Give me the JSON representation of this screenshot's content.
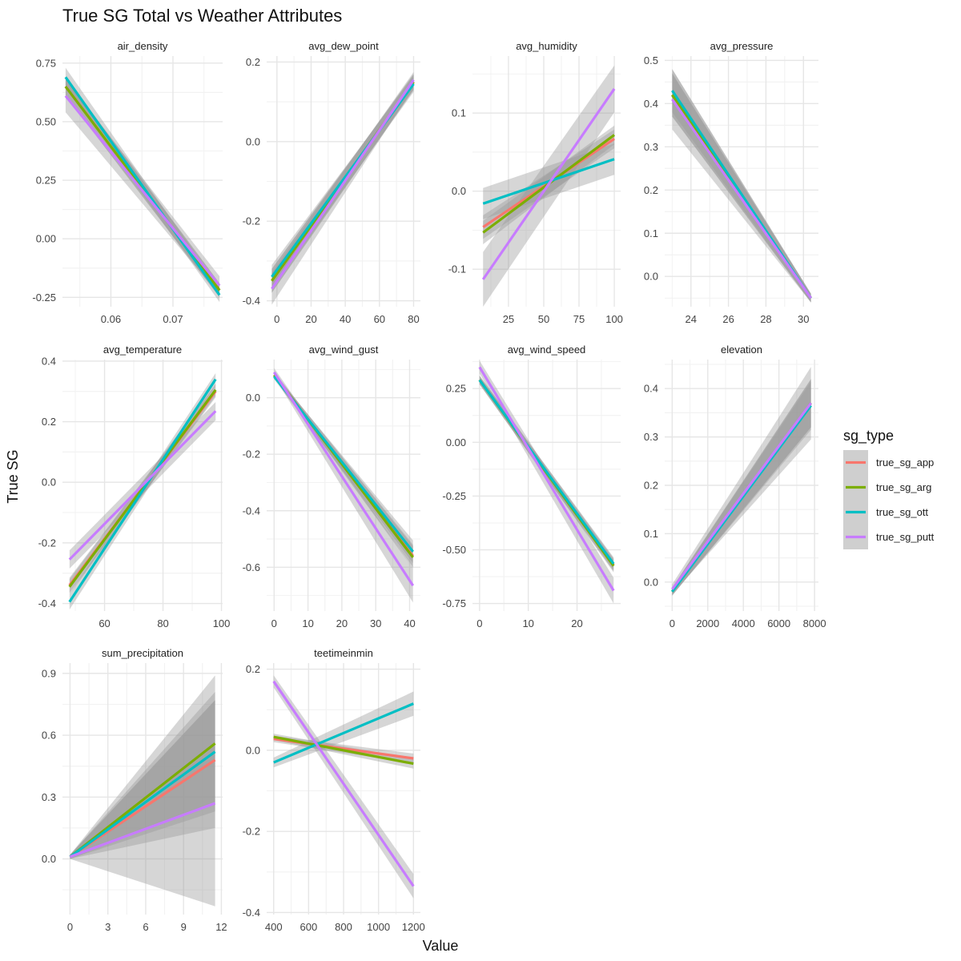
{
  "title": "True SG Total vs Weather Attributes",
  "xlabel": "Value",
  "ylabel": "True SG",
  "legend": {
    "title": "sg_type",
    "position": "right",
    "items": [
      {
        "key": "true_sg_app",
        "label": "true_sg_app",
        "color": "#F8766D"
      },
      {
        "key": "true_sg_arg",
        "label": "true_sg_arg",
        "color": "#7CAE00"
      },
      {
        "key": "true_sg_ott",
        "label": "true_sg_ott",
        "color": "#00BFC4"
      },
      {
        "key": "true_sg_putt",
        "label": "true_sg_putt",
        "color": "#C77CFF"
      }
    ]
  },
  "chart_data": {
    "type": "line",
    "subtype": "faceted linear regression fits with confidence bands",
    "grid": true,
    "series_order": [
      "true_sg_app",
      "true_sg_arg",
      "true_sg_ott",
      "true_sg_putt"
    ],
    "panels": [
      {
        "name": "air_density",
        "xlim": [
          0.0522,
          0.078
        ],
        "ylim": [
          -0.29,
          0.78
        ],
        "xticks": [
          0.06,
          0.07
        ],
        "xtick_labels": [
          "0.06",
          "0.07"
        ],
        "yticks": [
          -0.25,
          0,
          0.25,
          0.5,
          0.75
        ],
        "ytick_labels": [
          "-0.25",
          "0.00",
          "0.25",
          "0.50",
          "0.75"
        ],
        "series": [
          {
            "name": "true_sg_app",
            "x": [
              0.0527,
              0.0775
            ],
            "y": [
              0.65,
              -0.22
            ],
            "band": [
              0.04,
              0.03
            ]
          },
          {
            "name": "true_sg_arg",
            "x": [
              0.0527,
              0.0775
            ],
            "y": [
              0.65,
              -0.22
            ],
            "band": [
              0.04,
              0.03
            ]
          },
          {
            "name": "true_sg_ott",
            "x": [
              0.0527,
              0.0775
            ],
            "y": [
              0.69,
              -0.24
            ],
            "band": [
              0.04,
              0.03
            ]
          },
          {
            "name": "true_sg_putt",
            "x": [
              0.0527,
              0.0775
            ],
            "y": [
              0.61,
              -0.2
            ],
            "band": [
              0.07,
              0.04
            ]
          }
        ]
      },
      {
        "name": "avg_dew_point",
        "xlim": [
          -6,
          84
        ],
        "ylim": [
          -0.415,
          0.215
        ],
        "xticks": [
          0,
          20,
          40,
          60,
          80
        ],
        "xtick_labels": [
          "0",
          "20",
          "40",
          "60",
          "80"
        ],
        "yticks": [
          -0.4,
          -0.2,
          0.0,
          0.2
        ],
        "ytick_labels": [
          "-0.4",
          "-0.2",
          "0.0",
          "0.2"
        ],
        "series": [
          {
            "name": "true_sg_app",
            "x": [
              -3,
              80
            ],
            "y": [
              -0.35,
              0.15
            ],
            "band": [
              0.03,
              0.02
            ]
          },
          {
            "name": "true_sg_arg",
            "x": [
              -3,
              80
            ],
            "y": [
              -0.35,
              0.15
            ],
            "band": [
              0.03,
              0.02
            ]
          },
          {
            "name": "true_sg_ott",
            "x": [
              -3,
              80
            ],
            "y": [
              -0.34,
              0.145
            ],
            "band": [
              0.03,
              0.02
            ]
          },
          {
            "name": "true_sg_putt",
            "x": [
              -3,
              80
            ],
            "y": [
              -0.37,
              0.155
            ],
            "band": [
              0.04,
              0.02
            ]
          }
        ]
      },
      {
        "name": "avg_humidity",
        "xlim": [
          -0.5,
          104.5
        ],
        "ylim": [
          -0.148,
          0.173
        ],
        "xticks": [
          25,
          50,
          75,
          100
        ],
        "xtick_labels": [
          "25",
          "50",
          "75",
          "100"
        ],
        "yticks": [
          -0.1,
          0.0,
          0.1
        ],
        "ytick_labels": [
          "-0.1",
          "0.0",
          "0.1"
        ],
        "series": [
          {
            "name": "true_sg_app",
            "x": [
              7,
              100
            ],
            "y": [
              -0.046,
              0.067
            ],
            "band": [
              0.015,
              0.012
            ]
          },
          {
            "name": "true_sg_arg",
            "x": [
              7,
              100
            ],
            "y": [
              -0.053,
              0.072
            ],
            "band": [
              0.015,
              0.012
            ]
          },
          {
            "name": "true_sg_ott",
            "x": [
              7,
              100
            ],
            "y": [
              -0.016,
              0.041
            ],
            "band": [
              0.02,
              0.02
            ]
          },
          {
            "name": "true_sg_putt",
            "x": [
              7,
              100
            ],
            "y": [
              -0.113,
              0.131
            ],
            "band": [
              0.035,
              0.03
            ]
          }
        ]
      },
      {
        "name": "avg_pressure",
        "xlim": [
          22.6,
          30.8
        ],
        "ylim": [
          -0.07,
          0.51
        ],
        "xticks": [
          24,
          26,
          28,
          30
        ],
        "xtick_labels": [
          "24",
          "26",
          "28",
          "30"
        ],
        "yticks": [
          0.0,
          0.1,
          0.2,
          0.3,
          0.4,
          0.5
        ],
        "ytick_labels": [
          "0.0",
          "0.1",
          "0.2",
          "0.3",
          "0.4",
          "0.5"
        ],
        "series": [
          {
            "name": "true_sg_app",
            "x": [
              23.0,
              30.4
            ],
            "y": [
              0.42,
              -0.05
            ],
            "band": [
              0.05,
              0.01
            ]
          },
          {
            "name": "true_sg_arg",
            "x": [
              23.0,
              30.4
            ],
            "y": [
              0.42,
              -0.05
            ],
            "band": [
              0.05,
              0.01
            ]
          },
          {
            "name": "true_sg_ott",
            "x": [
              23.0,
              30.4
            ],
            "y": [
              0.43,
              -0.05
            ],
            "band": [
              0.05,
              0.01
            ]
          },
          {
            "name": "true_sg_putt",
            "x": [
              23.0,
              30.4
            ],
            "y": [
              0.41,
              -0.05
            ],
            "band": [
              0.07,
              0.01
            ]
          }
        ]
      },
      {
        "name": "avg_temperature",
        "xlim": [
          45.6,
          100.4
        ],
        "ylim": [
          -0.425,
          0.405
        ],
        "xticks": [
          60,
          80,
          100
        ],
        "xtick_labels": [
          "60",
          "80",
          "100"
        ],
        "yticks": [
          -0.4,
          -0.2,
          0.0,
          0.2,
          0.4
        ],
        "ytick_labels": [
          "-0.4",
          "-0.2",
          "0.0",
          "0.2",
          "0.4"
        ],
        "series": [
          {
            "name": "true_sg_app",
            "x": [
              48,
              98
            ],
            "y": [
              -0.34,
              0.3
            ],
            "band": [
              0.025,
              0.02
            ]
          },
          {
            "name": "true_sg_arg",
            "x": [
              48,
              98
            ],
            "y": [
              -0.345,
              0.305
            ],
            "band": [
              0.025,
              0.02
            ]
          },
          {
            "name": "true_sg_ott",
            "x": [
              48,
              98
            ],
            "y": [
              -0.395,
              0.34
            ],
            "band": [
              0.025,
              0.02
            ]
          },
          {
            "name": "true_sg_putt",
            "x": [
              48,
              98
            ],
            "y": [
              -0.255,
              0.235
            ],
            "band": [
              0.03,
              0.03
            ]
          }
        ]
      },
      {
        "name": "avg_wind_gust",
        "xlim": [
          -2.2,
          43.2
        ],
        "ylim": [
          -0.755,
          0.135
        ],
        "xticks": [
          0,
          10,
          20,
          30,
          40
        ],
        "xtick_labels": [
          "0",
          "10",
          "20",
          "30",
          "40"
        ],
        "yticks": [
          -0.6,
          -0.4,
          -0.2,
          0.0
        ],
        "ytick_labels": [
          "-0.6",
          "-0.4",
          "-0.2",
          "0.0"
        ],
        "series": [
          {
            "name": "true_sg_app",
            "x": [
              0,
              41
            ],
            "y": [
              0.08,
              -0.56
            ],
            "band": [
              0.01,
              0.04
            ]
          },
          {
            "name": "true_sg_arg",
            "x": [
              0,
              41
            ],
            "y": [
              0.08,
              -0.565
            ],
            "band": [
              0.01,
              0.04
            ]
          },
          {
            "name": "true_sg_ott",
            "x": [
              0,
              41
            ],
            "y": [
              0.075,
              -0.545
            ],
            "band": [
              0.01,
              0.04
            ]
          },
          {
            "name": "true_sg_putt",
            "x": [
              0,
              41
            ],
            "y": [
              0.09,
              -0.665
            ],
            "band": [
              0.015,
              0.06
            ]
          }
        ]
      },
      {
        "name": "avg_wind_speed",
        "xlim": [
          -1.45,
          28.95
        ],
        "ylim": [
          -0.785,
          0.385
        ],
        "xticks": [
          0,
          10,
          20
        ],
        "xtick_labels": [
          "0",
          "10",
          "20"
        ],
        "yticks": [
          -0.75,
          -0.5,
          -0.25,
          0.0,
          0.25
        ],
        "ytick_labels": [
          "-0.75",
          "-0.50",
          "-0.25",
          "0.00",
          "0.25"
        ],
        "series": [
          {
            "name": "true_sg_app",
            "x": [
              0,
              27.5
            ],
            "y": [
              0.29,
              -0.57
            ],
            "band": [
              0.02,
              0.03
            ]
          },
          {
            "name": "true_sg_arg",
            "x": [
              0,
              27.5
            ],
            "y": [
              0.29,
              -0.575
            ],
            "band": [
              0.02,
              0.03
            ]
          },
          {
            "name": "true_sg_ott",
            "x": [
              0,
              27.5
            ],
            "y": [
              0.29,
              -0.565
            ],
            "band": [
              0.02,
              0.03
            ]
          },
          {
            "name": "true_sg_putt",
            "x": [
              0,
              27.5
            ],
            "y": [
              0.35,
              -0.69
            ],
            "band": [
              0.03,
              0.06
            ]
          }
        ]
      },
      {
        "name": "elevation",
        "xlim": [
          -420,
          8220
        ],
        "ylim": [
          -0.06,
          0.46
        ],
        "xticks": [
          0,
          2000,
          4000,
          6000,
          8000
        ],
        "xtick_labels": [
          "0",
          "2000",
          "4000",
          "6000",
          "8000"
        ],
        "yticks": [
          0.0,
          0.1,
          0.2,
          0.3,
          0.4
        ],
        "ytick_labels": [
          "0.0",
          "0.1",
          "0.2",
          "0.3",
          "0.4"
        ],
        "series": [
          {
            "name": "true_sg_app",
            "x": [
              0,
              7800
            ],
            "y": [
              -0.02,
              0.37
            ],
            "band": [
              0.008,
              0.05
            ]
          },
          {
            "name": "true_sg_arg",
            "x": [
              0,
              7800
            ],
            "y": [
              -0.02,
              0.37
            ],
            "band": [
              0.008,
              0.05
            ]
          },
          {
            "name": "true_sg_ott",
            "x": [
              0,
              7800
            ],
            "y": [
              -0.02,
              0.365
            ],
            "band": [
              0.008,
              0.05
            ]
          },
          {
            "name": "true_sg_putt",
            "x": [
              0,
              7800
            ],
            "y": [
              -0.015,
              0.37
            ],
            "band": [
              0.01,
              0.075
            ]
          }
        ]
      },
      {
        "name": "sum_precipitation",
        "xlim": [
          -0.6,
          12.1
        ],
        "ylim": [
          -0.27,
          0.95
        ],
        "xticks": [
          0,
          3,
          6,
          9,
          12
        ],
        "xtick_labels": [
          "0",
          "3",
          "6",
          "9",
          "12"
        ],
        "yticks": [
          0.0,
          0.3,
          0.6,
          0.9
        ],
        "ytick_labels": [
          "0.0",
          "0.3",
          "0.6",
          "0.9"
        ],
        "series": [
          {
            "name": "true_sg_app",
            "x": [
              0,
              11.5
            ],
            "y": [
              0.01,
              0.48
            ],
            "band": [
              0.01,
              0.33
            ]
          },
          {
            "name": "true_sg_arg",
            "x": [
              0,
              11.5
            ],
            "y": [
              0.01,
              0.56
            ],
            "band": [
              0.01,
              0.33
            ]
          },
          {
            "name": "true_sg_ott",
            "x": [
              0,
              11.5
            ],
            "y": [
              0.01,
              0.52
            ],
            "band": [
              0.01,
              0.25
            ]
          },
          {
            "name": "true_sg_putt",
            "x": [
              0,
              11.5
            ],
            "y": [
              0.01,
              0.27
            ],
            "band": [
              0.01,
              0.5
            ]
          }
        ]
      },
      {
        "name": "teetimeinmin",
        "xlim": [
          360,
          1240
        ],
        "ylim": [
          -0.405,
          0.215
        ],
        "xticks": [
          400,
          600,
          800,
          1000,
          1200
        ],
        "xtick_labels": [
          "400",
          "600",
          "800",
          "1000",
          "1200"
        ],
        "yticks": [
          -0.4,
          -0.2,
          0.0,
          0.2
        ],
        "ytick_labels": [
          "-0.4",
          "-0.2",
          "0.0",
          "0.2"
        ],
        "series": [
          {
            "name": "true_sg_app",
            "x": [
              400,
              1200
            ],
            "y": [
              0.028,
              -0.02
            ],
            "band": [
              0.008,
              0.012
            ]
          },
          {
            "name": "true_sg_arg",
            "x": [
              400,
              1200
            ],
            "y": [
              0.033,
              -0.033
            ],
            "band": [
              0.008,
              0.012
            ]
          },
          {
            "name": "true_sg_ott",
            "x": [
              400,
              1200
            ],
            "y": [
              -0.03,
              0.115
            ],
            "band": [
              0.012,
              0.03
            ]
          },
          {
            "name": "true_sg_putt",
            "x": [
              400,
              1200
            ],
            "y": [
              0.17,
              -0.335
            ],
            "band": [
              0.015,
              0.03
            ]
          }
        ]
      }
    ]
  }
}
